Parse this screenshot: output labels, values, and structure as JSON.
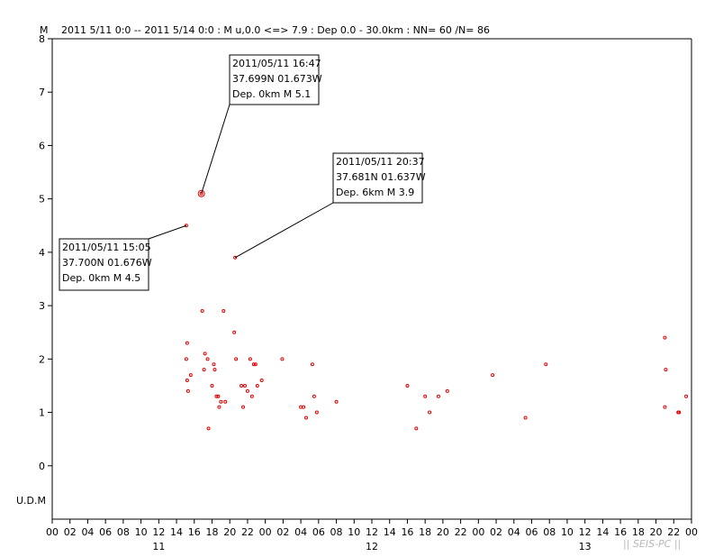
{
  "header": {
    "y_unit": "M",
    "text": "2011 5/11 0:0 -- 2011 5/14 0:0  : M u,0.0 <=> 7.9   :  Dep 0.0 - 30.0km :  NN= 60 /N= 86"
  },
  "udm_label": "U.D.M",
  "watermark": "|| SEIS-PC ||",
  "chart_data": {
    "type": "scatter",
    "x_unit": "hour",
    "x_start": "2011-05-11 00:00",
    "x_end": "2011-05-14 00:00",
    "ylim": [
      -1,
      8
    ],
    "y_ticks": [
      "0",
      "1",
      "2",
      "3",
      "4",
      "5",
      "6",
      "7",
      "8"
    ],
    "x_tick_labels": [
      "00",
      "02",
      "04",
      "06",
      "08",
      "10",
      "12",
      "14",
      "16",
      "18",
      "20",
      "22",
      "00",
      "02",
      "04",
      "06",
      "08",
      "10",
      "12",
      "14",
      "16",
      "18",
      "20",
      "22",
      "00",
      "02",
      "04",
      "06",
      "08",
      "10",
      "12",
      "14",
      "16",
      "18",
      "20",
      "22",
      "00"
    ],
    "day_labels": [
      {
        "label": "11",
        "hour": 12
      },
      {
        "label": "12",
        "hour": 36
      },
      {
        "label": "13",
        "hour": 60
      }
    ],
    "colors": {
      "points": "#e00000",
      "axes": "#000000"
    },
    "points": [
      {
        "x": 15.1,
        "y": 4.5
      },
      {
        "x": 16.8,
        "y": 5.1
      },
      {
        "x": 20.6,
        "y": 3.9
      },
      {
        "x": 15.1,
        "y": 2.0
      },
      {
        "x": 15.2,
        "y": 2.3
      },
      {
        "x": 15.2,
        "y": 1.6
      },
      {
        "x": 15.3,
        "y": 1.4
      },
      {
        "x": 15.6,
        "y": 1.7
      },
      {
        "x": 16.9,
        "y": 2.9
      },
      {
        "x": 17.1,
        "y": 1.8
      },
      {
        "x": 17.2,
        "y": 2.1
      },
      {
        "x": 17.5,
        "y": 2.0
      },
      {
        "x": 17.6,
        "y": 0.7
      },
      {
        "x": 18.0,
        "y": 1.5
      },
      {
        "x": 18.2,
        "y": 1.9
      },
      {
        "x": 18.3,
        "y": 1.8
      },
      {
        "x": 18.5,
        "y": 1.3
      },
      {
        "x": 18.7,
        "y": 1.3
      },
      {
        "x": 18.8,
        "y": 1.1
      },
      {
        "x": 19.0,
        "y": 1.2
      },
      {
        "x": 19.3,
        "y": 2.9
      },
      {
        "x": 19.5,
        "y": 1.2
      },
      {
        "x": 20.5,
        "y": 2.5
      },
      {
        "x": 20.7,
        "y": 2.0
      },
      {
        "x": 21.3,
        "y": 1.5
      },
      {
        "x": 21.5,
        "y": 1.1
      },
      {
        "x": 21.7,
        "y": 1.5
      },
      {
        "x": 22.0,
        "y": 1.4
      },
      {
        "x": 22.3,
        "y": 2.0
      },
      {
        "x": 22.5,
        "y": 1.3
      },
      {
        "x": 22.7,
        "y": 1.9
      },
      {
        "x": 22.9,
        "y": 1.9
      },
      {
        "x": 23.1,
        "y": 1.5
      },
      {
        "x": 23.6,
        "y": 1.6
      },
      {
        "x": 25.9,
        "y": 2.0
      },
      {
        "x": 28.0,
        "y": 1.1
      },
      {
        "x": 28.3,
        "y": 1.1
      },
      {
        "x": 28.6,
        "y": 0.9
      },
      {
        "x": 29.3,
        "y": 1.9
      },
      {
        "x": 29.5,
        "y": 1.3
      },
      {
        "x": 29.8,
        "y": 1.0
      },
      {
        "x": 32.0,
        "y": 1.2
      },
      {
        "x": 40.0,
        "y": 1.5
      },
      {
        "x": 41.0,
        "y": 0.7
      },
      {
        "x": 42.0,
        "y": 1.3
      },
      {
        "x": 42.5,
        "y": 1.0
      },
      {
        "x": 43.5,
        "y": 1.3
      },
      {
        "x": 44.5,
        "y": 1.4
      },
      {
        "x": 49.6,
        "y": 1.7
      },
      {
        "x": 53.3,
        "y": 0.9
      },
      {
        "x": 55.6,
        "y": 1.9
      },
      {
        "x": 69.0,
        "y": 2.4
      },
      {
        "x": 69.1,
        "y": 1.8
      },
      {
        "x": 69.0,
        "y": 1.1
      },
      {
        "x": 70.5,
        "y": 1.0
      },
      {
        "x": 70.6,
        "y": 1.0
      },
      {
        "x": 71.4,
        "y": 1.3
      }
    ],
    "annotations": [
      {
        "hour": 16.8,
        "mag": 5.1,
        "highlight": true,
        "line1": "2011/05/11 16:47",
        "line2": "37.699N   01.673W",
        "line3": "Dep. 0km    M 5.1"
      },
      {
        "hour": 20.6,
        "mag": 3.9,
        "highlight": false,
        "line1": "2011/05/11 20:37",
        "line2": "37.681N   01.637W",
        "line3": "Dep. 6km     M 3.9"
      },
      {
        "hour": 15.1,
        "mag": 4.5,
        "highlight": false,
        "line1": "2011/05/11 15:05",
        "line2": "37.700N   01.676W",
        "line3": "Dep. 0km    M 4.5"
      }
    ]
  }
}
